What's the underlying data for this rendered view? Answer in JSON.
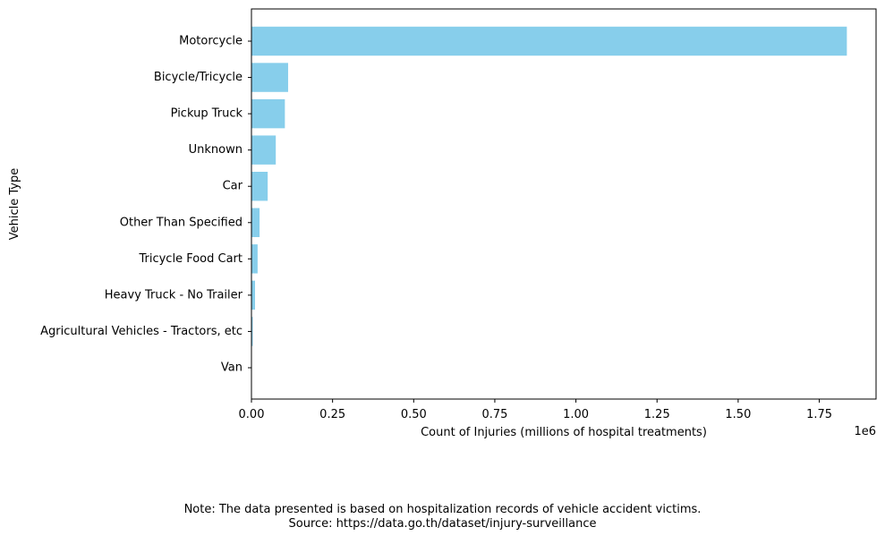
{
  "chart_data": {
    "type": "bar",
    "orientation": "horizontal",
    "categories": [
      "Motorcycle",
      "Bicycle/Tricycle",
      "Pickup Truck",
      "Unknown",
      "Car",
      "Other Than Specified",
      "Tricycle Food Cart",
      "Heavy Truck - No Trailer",
      "Agricultural Vehicles - Tractors, etc",
      "Van"
    ],
    "values": [
      1835000,
      113000,
      103000,
      75000,
      50000,
      25000,
      19000,
      11000,
      4000,
      1000
    ],
    "xlabel": "Count of Injuries (millions of hospital treatments)",
    "ylabel": "Vehicle Type",
    "xlim": [
      0,
      1925000
    ],
    "xticks": [
      0,
      250000,
      500000,
      750000,
      1000000,
      1250000,
      1500000,
      1750000
    ],
    "xtick_labels": [
      "0.00",
      "0.25",
      "0.50",
      "0.75",
      "1.00",
      "1.25",
      "1.50",
      "1.75"
    ],
    "x_offset_label": "1e6",
    "bar_color": "#87ceeb",
    "grid": false
  },
  "notes": {
    "line1": "Note: The data presented is based on hospitalization records of vehicle accident victims.",
    "line2": "Source: https://data.go.th/dataset/injury-surveillance"
  }
}
